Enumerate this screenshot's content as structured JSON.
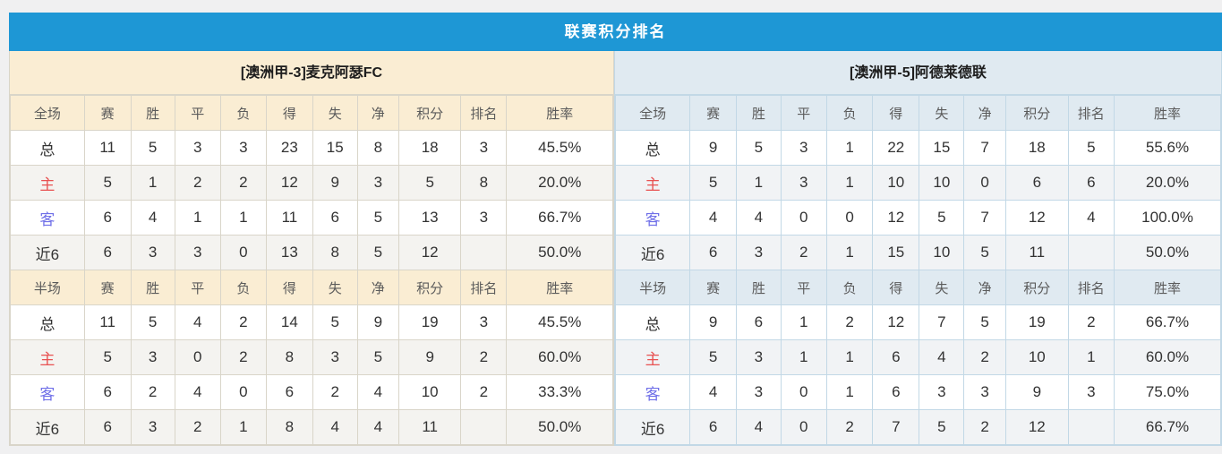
{
  "title": "联赛积分排名",
  "columns": {
    "full_label": "全场",
    "half_label": "半场",
    "stats": [
      "赛",
      "胜",
      "平",
      "负",
      "得",
      "失",
      "净",
      "积分",
      "排名",
      "胜率"
    ]
  },
  "colors": {
    "title_bar_bg": "#1E97D5",
    "left_header_bg": "#FAEDD3",
    "right_header_bg": "#E0EAF1",
    "score_red": "#FB3A1C",
    "rank_blue": "#3E8BDB",
    "home_label_red": "#E85151",
    "away_label_blue": "#6F6FE8"
  },
  "teams": [
    {
      "name": "[澳洲甲-3]麦克阿瑟FC",
      "theme": "warm",
      "full": [
        {
          "label": "总",
          "type": "total",
          "stats": [
            "11",
            "5",
            "3",
            "3",
            "23",
            "15",
            "8"
          ],
          "points": "18",
          "rank": "3",
          "rate": "45.5%"
        },
        {
          "label": "主",
          "type": "home",
          "stats": [
            "5",
            "1",
            "2",
            "2",
            "12",
            "9",
            "3"
          ],
          "points": "5",
          "rank": "8",
          "rate": "20.0%"
        },
        {
          "label": "客",
          "type": "away",
          "stats": [
            "6",
            "4",
            "1",
            "1",
            "11",
            "6",
            "5"
          ],
          "points": "13",
          "rank": "3",
          "rate": "66.7%"
        },
        {
          "label": "近6",
          "type": "recent",
          "stats": [
            "6",
            "3",
            "3",
            "0",
            "13",
            "8",
            "5"
          ],
          "points": "12",
          "rank": "",
          "rate": "50.0%"
        }
      ],
      "half": [
        {
          "label": "总",
          "type": "total",
          "stats": [
            "11",
            "5",
            "4",
            "2",
            "14",
            "5",
            "9"
          ],
          "points": "19",
          "rank": "3",
          "rate": "45.5%"
        },
        {
          "label": "主",
          "type": "home",
          "stats": [
            "5",
            "3",
            "0",
            "2",
            "8",
            "3",
            "5"
          ],
          "points": "9",
          "rank": "2",
          "rate": "60.0%"
        },
        {
          "label": "客",
          "type": "away",
          "stats": [
            "6",
            "2",
            "4",
            "0",
            "6",
            "2",
            "4"
          ],
          "points": "10",
          "rank": "2",
          "rate": "33.3%"
        },
        {
          "label": "近6",
          "type": "recent",
          "stats": [
            "6",
            "3",
            "2",
            "1",
            "8",
            "4",
            "4"
          ],
          "points": "11",
          "rank": "",
          "rate": "50.0%"
        }
      ]
    },
    {
      "name": "[澳洲甲-5]阿德莱德联",
      "theme": "cool",
      "full": [
        {
          "label": "总",
          "type": "total",
          "stats": [
            "9",
            "5",
            "3",
            "1",
            "22",
            "15",
            "7"
          ],
          "points": "18",
          "rank": "5",
          "rate": "55.6%"
        },
        {
          "label": "主",
          "type": "home",
          "stats": [
            "5",
            "1",
            "3",
            "1",
            "10",
            "10",
            "0"
          ],
          "points": "6",
          "rank": "6",
          "rate": "20.0%"
        },
        {
          "label": "客",
          "type": "away",
          "stats": [
            "4",
            "4",
            "0",
            "0",
            "12",
            "5",
            "7"
          ],
          "points": "12",
          "rank": "4",
          "rate": "100.0%"
        },
        {
          "label": "近6",
          "type": "recent",
          "stats": [
            "6",
            "3",
            "2",
            "1",
            "15",
            "10",
            "5"
          ],
          "points": "11",
          "rank": "",
          "rate": "50.0%"
        }
      ],
      "half": [
        {
          "label": "总",
          "type": "total",
          "stats": [
            "9",
            "6",
            "1",
            "2",
            "12",
            "7",
            "5"
          ],
          "points": "19",
          "rank": "2",
          "rate": "66.7%"
        },
        {
          "label": "主",
          "type": "home",
          "stats": [
            "5",
            "3",
            "1",
            "1",
            "6",
            "4",
            "2"
          ],
          "points": "10",
          "rank": "1",
          "rate": "60.0%"
        },
        {
          "label": "客",
          "type": "away",
          "stats": [
            "4",
            "3",
            "0",
            "1",
            "6",
            "3",
            "3"
          ],
          "points": "9",
          "rank": "3",
          "rate": "75.0%"
        },
        {
          "label": "近6",
          "type": "recent",
          "stats": [
            "6",
            "4",
            "0",
            "2",
            "7",
            "5",
            "2"
          ],
          "points": "12",
          "rank": "",
          "rate": "66.7%"
        }
      ]
    }
  ]
}
